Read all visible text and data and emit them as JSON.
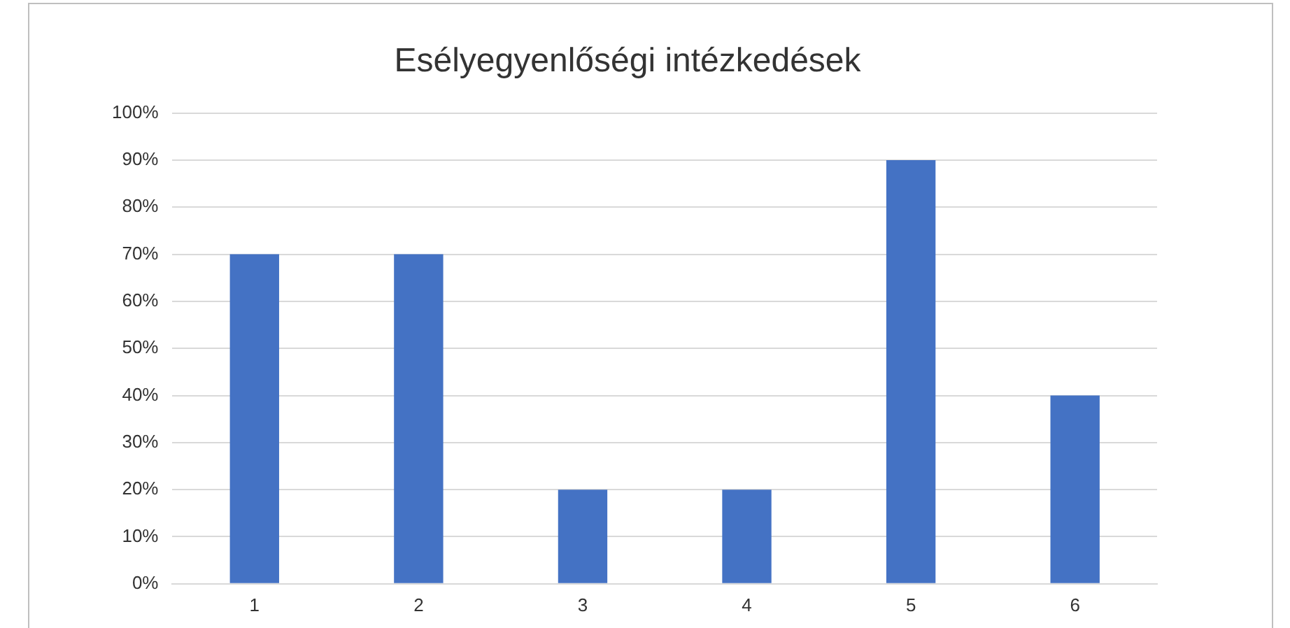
{
  "chart_data": {
    "type": "bar",
    "title": "Esélyegyenlőségi intézkedések",
    "categories": [
      "1",
      "2",
      "3",
      "4",
      "5",
      "6"
    ],
    "values": [
      70,
      70,
      20,
      20,
      90,
      40
    ],
    "color": "#4472c4",
    "ylim": [
      0,
      100
    ],
    "yticks": [
      {
        "value": 0,
        "label": "0%"
      },
      {
        "value": 10,
        "label": "10%"
      },
      {
        "value": 20,
        "label": "20%"
      },
      {
        "value": 30,
        "label": "30%"
      },
      {
        "value": 40,
        "label": "40%"
      },
      {
        "value": 50,
        "label": "50%"
      },
      {
        "value": 60,
        "label": "60%"
      },
      {
        "value": 70,
        "label": "70%"
      },
      {
        "value": 80,
        "label": "80%"
      },
      {
        "value": 90,
        "label": "90%"
      },
      {
        "value": 100,
        "label": "100%"
      }
    ],
    "grid": "y",
    "legend": false
  }
}
